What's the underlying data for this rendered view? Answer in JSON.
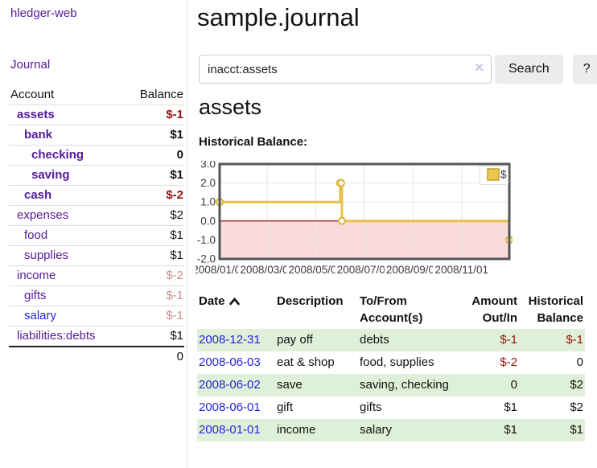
{
  "app": {
    "title": "hledger-web",
    "nav_journal": "Journal"
  },
  "sidebar": {
    "headers": {
      "account": "Account",
      "balance": "Balance"
    },
    "accounts": [
      {
        "name": "assets",
        "depth": 1,
        "bold": true,
        "balance": "$-1",
        "balance_style": "neg-strong",
        "link_style": "purple"
      },
      {
        "name": "bank",
        "depth": 2,
        "bold": true,
        "balance": "$1",
        "balance_style": "normal",
        "link_style": "purple"
      },
      {
        "name": "checking",
        "depth": 3,
        "bold": true,
        "balance": "0",
        "balance_style": "normal",
        "link_style": "purple"
      },
      {
        "name": "saving",
        "depth": 3,
        "bold": true,
        "balance": "$1",
        "balance_style": "normal",
        "link_style": "purple"
      },
      {
        "name": "cash",
        "depth": 2,
        "bold": true,
        "balance": "$-2",
        "balance_style": "neg-strong",
        "link_style": "purple"
      },
      {
        "name": "expenses",
        "depth": 1,
        "bold": false,
        "balance": "$2",
        "balance_style": "normal",
        "link_style": "purple"
      },
      {
        "name": "food",
        "depth": 2,
        "bold": false,
        "balance": "$1",
        "balance_style": "normal",
        "link_style": "purple"
      },
      {
        "name": "supplies",
        "depth": 2,
        "bold": false,
        "balance": "$1",
        "balance_style": "normal",
        "link_style": "purple"
      },
      {
        "name": "income",
        "depth": 1,
        "bold": false,
        "balance": "$-2",
        "balance_style": "neg-soft",
        "link_style": "purple"
      },
      {
        "name": "gifts",
        "depth": 2,
        "bold": false,
        "balance": "$-1",
        "balance_style": "neg-soft",
        "link_style": "purple"
      },
      {
        "name": "salary",
        "depth": 2,
        "bold": false,
        "balance": "$-1",
        "balance_style": "neg-soft",
        "link_style": "blue"
      },
      {
        "name": "liabilities:debts",
        "depth": 1,
        "bold": false,
        "balance": "$1",
        "balance_style": "normal",
        "link_style": "purple"
      }
    ],
    "total": "0"
  },
  "header": {
    "title": "sample.journal"
  },
  "search": {
    "value": "inacct:assets",
    "clear_icon": "close-x",
    "button": "Search",
    "help_button": "?"
  },
  "account_page": {
    "heading": "assets",
    "chart_label": "Historical Balance:"
  },
  "chart_data": {
    "type": "line",
    "step": true,
    "title": "Historical Balance",
    "legend": "$",
    "legend_position": "top-right",
    "grid": true,
    "x_range": [
      "2008-01-01",
      "2008-12-31"
    ],
    "ylim": [
      -2,
      3
    ],
    "y_tick_labels": [
      "3.0",
      "2.0",
      "1.0",
      "0.0",
      "-1.0",
      "-2.0"
    ],
    "y_ticks": [
      3,
      2,
      1,
      0,
      -1,
      -2
    ],
    "x_tick_labels": [
      "2008/01/01",
      "2008/03/01",
      "2008/05/01",
      "2008/07/01",
      "2008/09/01",
      "2008/11/01"
    ],
    "x_tick_dates": [
      "2008-01-01",
      "2008-03-01",
      "2008-05-01",
      "2008-07-01",
      "2008-09-01",
      "2008-11-01"
    ],
    "series": [
      {
        "name": "$",
        "color": "#e6c14d",
        "points": [
          [
            "2008-01-01",
            1
          ],
          [
            "2008-06-01",
            2
          ],
          [
            "2008-06-02",
            2
          ],
          [
            "2008-06-03",
            0
          ],
          [
            "2008-12-31",
            -1
          ]
        ]
      }
    ],
    "colors": {
      "line": "#e6c14d",
      "marker_stroke": "#dcb83c",
      "negative_fill": "#fbdbdb",
      "zero_line": "#8b0000",
      "gridline": "#e4e4e4",
      "border": "#565656",
      "legend_swatch": "#ecc84f",
      "legend_swatch_border": "#bfa02f"
    }
  },
  "register": {
    "headers": [
      "Date",
      "Description",
      "To/From Account(s)",
      "Amount Out/In",
      "Historical Balance"
    ],
    "sort_icon": "chevron-up",
    "rows": [
      {
        "date": "2008-12-31",
        "description": "pay off",
        "accounts": "debts",
        "amount": "$-1",
        "amount_neg": true,
        "balance": "$-1",
        "balance_neg": true
      },
      {
        "date": "2008-06-03",
        "description": "eat & shop",
        "accounts": "food, supplies",
        "amount": "$-2",
        "amount_neg": true,
        "balance": "0",
        "balance_neg": false
      },
      {
        "date": "2008-06-02",
        "description": "save",
        "accounts": "saving, checking",
        "amount": "0",
        "amount_neg": false,
        "balance": "$2",
        "balance_neg": false
      },
      {
        "date": "2008-06-01",
        "description": "gift",
        "accounts": "gifts",
        "amount": "$1",
        "amount_neg": false,
        "balance": "$2",
        "balance_neg": false
      },
      {
        "date": "2008-01-01",
        "description": "income",
        "accounts": "salary",
        "amount": "$1",
        "amount_neg": false,
        "balance": "$1",
        "balance_neg": false
      }
    ]
  }
}
